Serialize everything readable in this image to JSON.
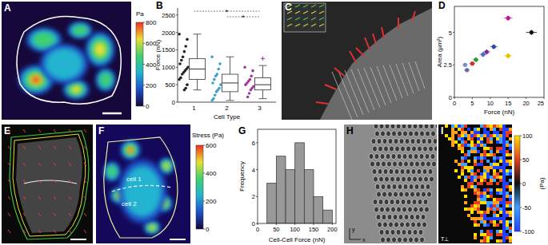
{
  "chart_data": [
    {
      "type": "image",
      "panel": "A",
      "colorbar_label": "Pa",
      "colorbar_range": [
        0,
        800
      ],
      "colorbar_ticks": [
        0,
        200,
        400,
        600,
        800
      ]
    },
    {
      "type": "box",
      "panel": "B",
      "x_label": "Cell Type",
      "y_label": "Force (nN)",
      "categories": [
        "1",
        "2",
        "3"
      ],
      "ylim": [
        0,
        2700
      ],
      "yticks": [
        0,
        500,
        1000,
        1500,
        2000,
        2500
      ],
      "annotations": [
        "*",
        "*"
      ],
      "colors": [
        "#222222",
        "#3aa0c8",
        "#9b3c9b"
      ],
      "boxes": [
        {
          "min": 350,
          "q1": 650,
          "median": 950,
          "q3": 1250,
          "max": 1950,
          "points": [
            1950,
            1800,
            1600,
            1450,
            1300,
            1200,
            1100,
            1000,
            950,
            900,
            850,
            800,
            700,
            650,
            500,
            400,
            350
          ],
          "outliers": []
        },
        {
          "min": 50,
          "q1": 300,
          "median": 550,
          "q3": 800,
          "max": 1300,
          "points": [
            1300,
            1100,
            950,
            800,
            750,
            650,
            550,
            500,
            400,
            350,
            300,
            200,
            100,
            50
          ],
          "outliers": []
        },
        {
          "min": 100,
          "q1": 350,
          "median": 500,
          "q3": 700,
          "max": 1050,
          "points": [
            1000,
            900,
            750,
            650,
            600,
            550,
            500,
            450,
            400,
            350,
            250,
            150
          ],
          "outliers": [
            1250
          ]
        }
      ]
    },
    {
      "type": "image",
      "panel": "C"
    },
    {
      "type": "scatter",
      "panel": "D",
      "x_label": "Force (nN)",
      "y_label": "Area (µm²)",
      "x": [
        21.5,
        15,
        11,
        15,
        9,
        8,
        6,
        5,
        3,
        3.5
      ],
      "values": [
        5.0,
        6.1,
        3.9,
        3.2,
        3.5,
        3.3,
        2.9,
        2.6,
        2.5,
        2.1
      ],
      "x_errors": [
        1.5,
        1.2,
        1.0,
        1.2,
        1.0,
        1.0,
        0.8,
        0.8,
        0.7,
        0.8
      ],
      "errors": [
        0.2,
        0.2,
        0.2,
        0.2,
        0.2,
        0.2,
        0.2,
        0.15,
        0.15,
        0.15
      ],
      "colors": [
        "#111111",
        "#c2188a",
        "#3344aa",
        "#e8c000",
        "#7a2aa0",
        "#5566cc",
        "#2a9a3a",
        "#d23030",
        "#8888cc",
        "#6a6aa0"
      ],
      "marker": "circle",
      "xlim": [
        0,
        25
      ],
      "ylim": [
        0,
        7
      ],
      "xticks": [
        0,
        5,
        10,
        15,
        20,
        25
      ],
      "yticks": [
        0,
        2.5,
        5
      ]
    },
    {
      "type": "image",
      "panel": "E"
    },
    {
      "type": "image",
      "panel": "F",
      "colorbar_label": "Stress (Pa)",
      "colorbar_range": [
        0,
        600
      ],
      "colorbar_ticks": [
        0,
        200,
        400,
        600
      ],
      "annotations": [
        "cell 1",
        "cell 2"
      ]
    },
    {
      "type": "histogram",
      "panel": "G",
      "x_label": "Cell-Cell Force (nN)",
      "y_label": "Frequency",
      "bins": [
        25,
        50,
        75,
        100,
        125,
        150,
        175,
        200
      ],
      "values": [
        3,
        5,
        4,
        6,
        4,
        2,
        1
      ],
      "color": "#999999",
      "xlim": [
        0,
        210
      ],
      "ylim": [
        0,
        7
      ],
      "xticks": [
        0,
        50,
        100,
        150,
        200
      ],
      "yticks": [
        0,
        2,
        4,
        6
      ]
    },
    {
      "type": "image",
      "panel": "H",
      "annotations": [
        "y",
        "x"
      ]
    },
    {
      "type": "image",
      "panel": "I",
      "colorbar_label": "(Pa)",
      "colorbar_range": [
        -100,
        100
      ],
      "colorbar_ticks": [
        -100,
        -50,
        0,
        50,
        100
      ],
      "annotations": [
        "T⊥"
      ]
    }
  ]
}
